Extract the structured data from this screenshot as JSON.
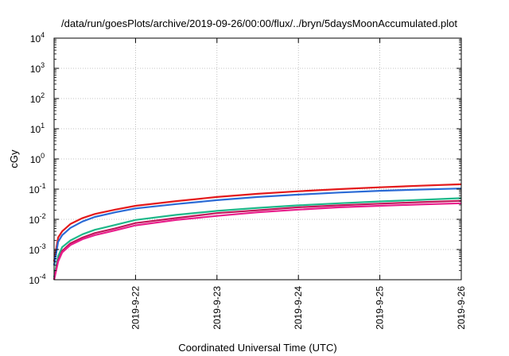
{
  "chart_data": {
    "type": "line",
    "title": "/data/run/goesPlots/archive/2019-09-26/00:00/flux/../bryn/5daysMoonAccumulated.plot",
    "xlabel": "Coordinated Universal Time (UTC)",
    "ylabel": "cGy",
    "y_scale": "log",
    "ylim": [
      0.0001,
      10000
    ],
    "xlim": [
      0,
      5
    ],
    "y_ticks": [
      {
        "base": "10",
        "exp": "-4"
      },
      {
        "base": "10",
        "exp": "-3"
      },
      {
        "base": "10",
        "exp": "-2"
      },
      {
        "base": "10",
        "exp": "-1"
      },
      {
        "base": "10",
        "exp": "0"
      },
      {
        "base": "10",
        "exp": "1"
      },
      {
        "base": "10",
        "exp": "2"
      },
      {
        "base": "10",
        "exp": "3"
      },
      {
        "base": "10",
        "exp": "4"
      }
    ],
    "x_ticks": [
      {
        "label": "2019-9-22",
        "x": 1
      },
      {
        "label": "2019-9-23",
        "x": 2
      },
      {
        "label": "2019-9-24",
        "x": 3
      },
      {
        "label": "2019-9-25",
        "x": 4
      },
      {
        "label": "2019-9-26",
        "x": 5
      }
    ],
    "grid": true,
    "series": [
      {
        "color": "#e41a1c",
        "x": [
          0,
          0.05,
          0.1,
          0.2,
          0.35,
          0.5,
          0.75,
          1,
          1.5,
          2,
          2.5,
          3,
          3.5,
          4,
          4.5,
          5
        ],
        "y": [
          0.0004,
          0.0025,
          0.004,
          0.007,
          0.011,
          0.015,
          0.021,
          0.028,
          0.04,
          0.055,
          0.07,
          0.085,
          0.1,
          0.115,
          0.13,
          0.145
        ]
      },
      {
        "color": "#2b6bd6",
        "x": [
          0,
          0.05,
          0.1,
          0.2,
          0.35,
          0.5,
          0.75,
          1,
          1.5,
          2,
          2.5,
          3,
          3.5,
          4,
          4.5,
          5
        ],
        "y": [
          0.0003,
          0.0018,
          0.003,
          0.0052,
          0.0085,
          0.012,
          0.017,
          0.023,
          0.032,
          0.043,
          0.055,
          0.066,
          0.077,
          0.088,
          0.097,
          0.105
        ]
      },
      {
        "color": "#1fb88a",
        "x": [
          0,
          0.05,
          0.1,
          0.2,
          0.35,
          0.5,
          0.75,
          1,
          1.5,
          2,
          2.5,
          3,
          3.5,
          4,
          4.5,
          5
        ],
        "y": [
          0.00012,
          0.0006,
          0.0012,
          0.002,
          0.0032,
          0.0045,
          0.0065,
          0.0095,
          0.014,
          0.019,
          0.024,
          0.029,
          0.034,
          0.039,
          0.044,
          0.05
        ]
      },
      {
        "color": "#c2185b",
        "x": [
          0,
          0.05,
          0.1,
          0.2,
          0.35,
          0.5,
          0.75,
          1,
          1.5,
          2,
          2.5,
          3,
          3.5,
          4,
          4.5,
          5
        ],
        "y": [
          0.0001,
          0.00045,
          0.0009,
          0.0016,
          0.0025,
          0.0035,
          0.005,
          0.0075,
          0.011,
          0.016,
          0.02,
          0.025,
          0.029,
          0.033,
          0.037,
          0.041
        ]
      },
      {
        "color": "#e91e8c",
        "x": [
          0,
          0.05,
          0.1,
          0.2,
          0.35,
          0.5,
          0.75,
          1,
          1.5,
          2,
          2.5,
          3,
          3.5,
          4,
          4.5,
          5
        ],
        "y": [
          0.0001,
          0.0004,
          0.0008,
          0.0014,
          0.0022,
          0.003,
          0.0043,
          0.0063,
          0.0095,
          0.013,
          0.017,
          0.021,
          0.025,
          0.028,
          0.031,
          0.034
        ]
      }
    ]
  }
}
